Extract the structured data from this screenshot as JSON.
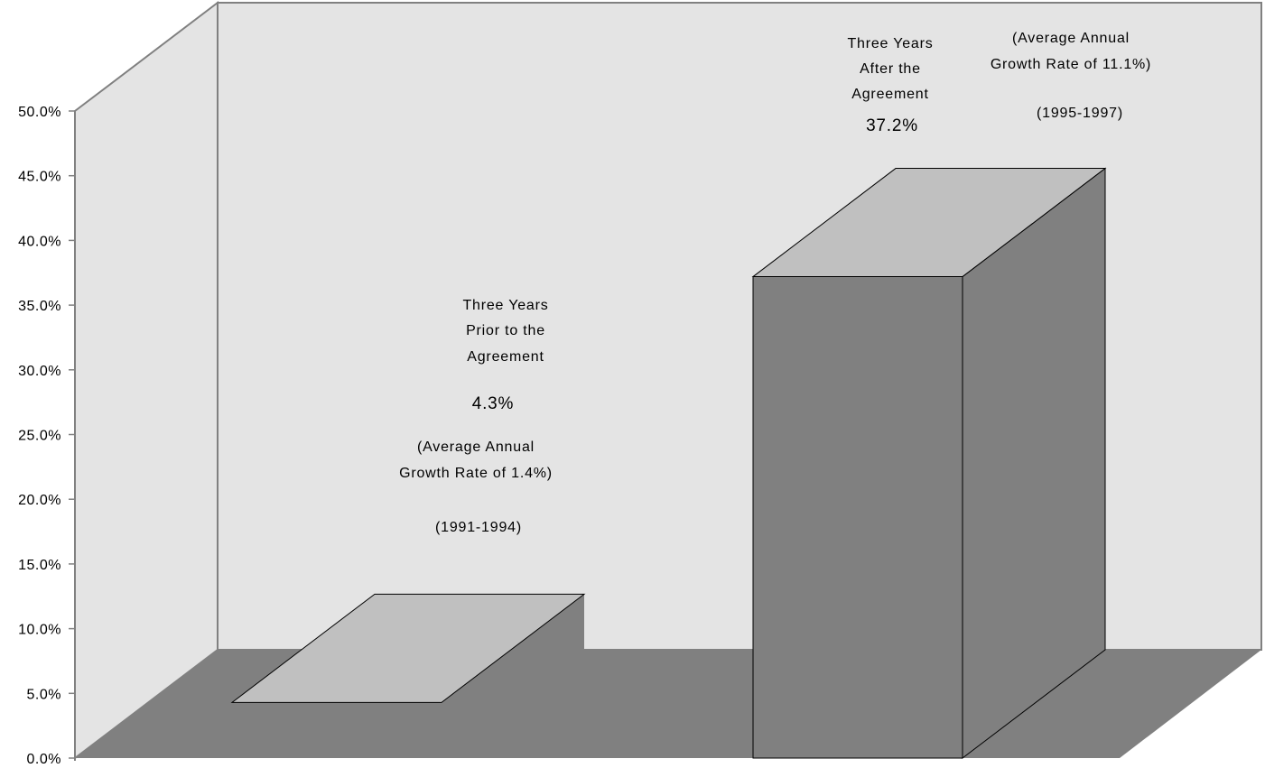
{
  "chart_data": {
    "type": "bar",
    "style": "3d",
    "categories": [
      "Three Years Prior to the Agreement",
      "Three Years After the Agreement"
    ],
    "values": [
      4.3,
      37.2
    ],
    "ylim": [
      0,
      50
    ],
    "yticks": [
      "0.0%",
      "5.0%",
      "10.0%",
      "15.0%",
      "20.0%",
      "25.0%",
      "30.0%",
      "35.0%",
      "40.0%",
      "45.0%",
      "50.0%"
    ],
    "grid": false,
    "legend": "none",
    "title": "",
    "xlabel": "",
    "ylabel": "",
    "annotations": [
      {
        "lines": [
          "Three Years",
          "Prior to the",
          "Agreement"
        ],
        "value": "4.3%",
        "growth": [
          "(Average Annual",
          "Growth Rate of 1.4%)"
        ],
        "period": "(1991-1994)"
      },
      {
        "lines": [
          "Three Years",
          "After the",
          "Agreement"
        ],
        "value": "37.2%",
        "growth": [
          "(Average Annual",
          "Growth Rate of 11.1%)"
        ],
        "period": "(1995-1997)"
      }
    ],
    "colors": {
      "back_wall": "#e4e4e4",
      "floor": "#808080",
      "bar_front": "#808080",
      "bar_top": "#c0c0c0",
      "bar_side": "#808080",
      "frame": "#808080"
    }
  }
}
